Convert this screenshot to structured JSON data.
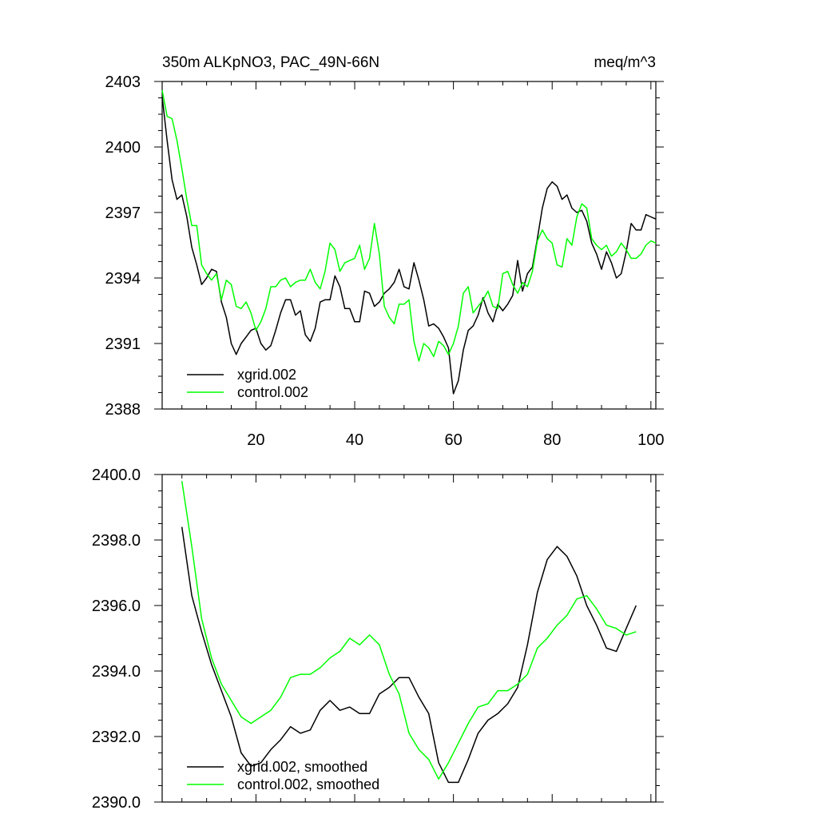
{
  "chart_data": [
    {
      "type": "line",
      "title_left": "350m ALKpNO3, PAC_49N-66N",
      "title_right": "meq/m^3",
      "xlim": [
        1,
        101
      ],
      "ylim": [
        2388,
        2403
      ],
      "xticks": [
        "20",
        "40",
        "60",
        "80",
        "100"
      ],
      "xtick_values": [
        20,
        40,
        60,
        80,
        100
      ],
      "yticks": [
        "2388",
        "2391",
        "2394",
        "2397",
        "2400",
        "2403"
      ],
      "ytick_values": [
        2388,
        2391,
        2394,
        2397,
        2400,
        2403
      ],
      "legend_position": "bottom-left",
      "series": [
        {
          "name": "xgrid.002",
          "color": "#000000",
          "x": [
            1,
            2,
            3,
            4,
            5,
            6,
            7,
            8,
            9,
            10,
            11,
            12,
            13,
            14,
            15,
            16,
            17,
            18,
            19,
            20,
            21,
            22,
            23,
            24,
            25,
            26,
            27,
            28,
            29,
            30,
            31,
            32,
            33,
            34,
            35,
            36,
            37,
            38,
            39,
            40,
            41,
            42,
            43,
            44,
            45,
            46,
            47,
            48,
            49,
            50,
            51,
            52,
            53,
            54,
            55,
            56,
            57,
            58,
            59,
            60,
            61,
            62,
            63,
            64,
            65,
            66,
            67,
            68,
            69,
            70,
            71,
            72,
            73,
            74,
            75,
            76,
            77,
            78,
            79,
            80,
            81,
            82,
            83,
            84,
            85,
            86,
            87,
            88,
            89,
            90,
            91,
            92,
            93,
            94,
            95,
            96,
            97,
            98,
            99,
            100,
            101
          ],
          "y": [
            2402.3,
            2400.3,
            2398.5,
            2397.6,
            2397.8,
            2396.8,
            2395.4,
            2394.6,
            2393.7,
            2394.0,
            2394.4,
            2394.3,
            2392.9,
            2392.2,
            2391.0,
            2390.5,
            2391.0,
            2391.3,
            2391.6,
            2391.7,
            2391.0,
            2390.7,
            2390.9,
            2391.6,
            2392.4,
            2393.0,
            2393.0,
            2392.3,
            2392.5,
            2391.4,
            2391.1,
            2391.7,
            2392.9,
            2393.0,
            2393.0,
            2394.1,
            2393.6,
            2392.6,
            2392.6,
            2392.0,
            2392.0,
            2393.4,
            2393.3,
            2392.7,
            2392.9,
            2393.3,
            2393.5,
            2393.8,
            2394.4,
            2393.6,
            2393.5,
            2394.7,
            2393.9,
            2393.0,
            2391.8,
            2391.9,
            2391.7,
            2391.3,
            2390.8,
            2388.7,
            2389.3,
            2390.7,
            2391.6,
            2391.8,
            2392.3,
            2393.1,
            2392.4,
            2392.0,
            2392.8,
            2392.5,
            2392.8,
            2393.2,
            2394.8,
            2393.4,
            2394.2,
            2394.5,
            2395.8,
            2397.2,
            2398.1,
            2398.4,
            2398.2,
            2397.6,
            2397.8,
            2397.2,
            2397.0,
            2397.1,
            2396.6,
            2395.6,
            2395.1,
            2394.4,
            2395.2,
            2394.7,
            2394.0,
            2394.2,
            2395.2,
            2396.5,
            2396.2,
            2396.2,
            2396.9,
            2396.8,
            2396.7
          ]
        },
        {
          "name": "control.002",
          "color": "#00ff00",
          "x": [
            1,
            2,
            3,
            4,
            5,
            6,
            7,
            8,
            9,
            10,
            11,
            12,
            13,
            14,
            15,
            16,
            17,
            18,
            19,
            20,
            21,
            22,
            23,
            24,
            25,
            26,
            27,
            28,
            29,
            30,
            31,
            32,
            33,
            34,
            35,
            36,
            37,
            38,
            39,
            40,
            41,
            42,
            43,
            44,
            45,
            46,
            47,
            48,
            49,
            50,
            51,
            52,
            53,
            54,
            55,
            56,
            57,
            58,
            59,
            60,
            61,
            62,
            63,
            64,
            65,
            66,
            67,
            68,
            69,
            70,
            71,
            72,
            73,
            74,
            75,
            76,
            77,
            78,
            79,
            80,
            81,
            82,
            83,
            84,
            85,
            86,
            87,
            88,
            89,
            90,
            91,
            92,
            93,
            94,
            95,
            96,
            97,
            98,
            99,
            100,
            101
          ],
          "y": [
            2402.6,
            2401.4,
            2401.3,
            2400.3,
            2399.0,
            2397.6,
            2396.4,
            2396.4,
            2394.6,
            2394.2,
            2393.9,
            2394.2,
            2393.0,
            2393.9,
            2393.7,
            2392.7,
            2392.6,
            2392.9,
            2392.4,
            2391.6,
            2392.0,
            2392.6,
            2393.6,
            2393.6,
            2393.9,
            2394.0,
            2393.6,
            2393.8,
            2393.9,
            2393.9,
            2394.4,
            2393.8,
            2393.5,
            2394.3,
            2395.6,
            2395.3,
            2394.3,
            2394.7,
            2394.8,
            2394.9,
            2395.5,
            2394.4,
            2394.9,
            2396.5,
            2395.1,
            2392.7,
            2392.2,
            2391.9,
            2392.8,
            2392.8,
            2393.0,
            2391.1,
            2390.2,
            2391.0,
            2390.8,
            2390.4,
            2391.1,
            2390.9,
            2390.5,
            2391.0,
            2391.8,
            2393.3,
            2393.6,
            2392.4,
            2392.7,
            2393.0,
            2393.4,
            2392.7,
            2392.6,
            2394.2,
            2394.3,
            2393.7,
            2393.3,
            2393.8,
            2393.6,
            2394.3,
            2395.7,
            2396.2,
            2395.8,
            2395.6,
            2394.6,
            2394.5,
            2395.8,
            2395.5,
            2396.8,
            2397.4,
            2397.2,
            2395.8,
            2395.5,
            2395.3,
            2395.5,
            2395.0,
            2395.2,
            2395.6,
            2395.3,
            2394.9,
            2394.9,
            2395.1,
            2395.5,
            2395.7,
            2395.6
          ]
        }
      ]
    },
    {
      "type": "line",
      "xlim": [
        1,
        101
      ],
      "ylim": [
        2390.0,
        2400.0
      ],
      "yticks": [
        "2390.0",
        "2392.0",
        "2394.0",
        "2396.0",
        "2398.0",
        "2400.0"
      ],
      "ytick_values": [
        2390,
        2392,
        2394,
        2396,
        2398,
        2400
      ],
      "xtick_values": [
        20,
        40,
        60,
        80,
        100
      ],
      "legend_position": "bottom-left",
      "series": [
        {
          "name": "xgrid.002, smoothed",
          "color": "#000000",
          "x": [
            5,
            7,
            9,
            11,
            13,
            15,
            17,
            19,
            21,
            23,
            25,
            27,
            29,
            31,
            33,
            35,
            37,
            39,
            41,
            43,
            45,
            47,
            49,
            51,
            53,
            55,
            57,
            59,
            61,
            63,
            65,
            67,
            69,
            71,
            73,
            75,
            77,
            79,
            81,
            83,
            85,
            87,
            89,
            91,
            93,
            95,
            97
          ],
          "y": [
            2398.4,
            2396.3,
            2395.2,
            2394.2,
            2393.4,
            2392.6,
            2391.5,
            2391.1,
            2391.2,
            2391.6,
            2391.9,
            2392.3,
            2392.1,
            2392.2,
            2392.8,
            2393.1,
            2392.8,
            2392.9,
            2392.7,
            2392.7,
            2393.3,
            2393.5,
            2393.8,
            2393.8,
            2393.2,
            2392.7,
            2391.2,
            2390.6,
            2390.6,
            2391.3,
            2392.1,
            2392.5,
            2392.7,
            2393.0,
            2393.5,
            2394.8,
            2396.4,
            2397.4,
            2397.8,
            2397.5,
            2396.9,
            2396.0,
            2395.4,
            2394.7,
            2394.6,
            2395.3,
            2396.0
          ]
        },
        {
          "name": "control.002, smoothed",
          "color": "#00ff00",
          "x": [
            5,
            7,
            9,
            11,
            13,
            15,
            17,
            19,
            21,
            23,
            25,
            27,
            29,
            31,
            33,
            35,
            37,
            39,
            41,
            43,
            45,
            47,
            49,
            51,
            53,
            55,
            57,
            59,
            61,
            63,
            65,
            67,
            69,
            71,
            73,
            75,
            77,
            79,
            81,
            83,
            85,
            87,
            89,
            91,
            93,
            95,
            97
          ],
          "y": [
            2399.8,
            2397.8,
            2395.6,
            2394.4,
            2393.6,
            2393.1,
            2392.6,
            2392.4,
            2392.6,
            2392.8,
            2393.2,
            2393.8,
            2393.9,
            2393.9,
            2394.1,
            2394.4,
            2394.6,
            2395.0,
            2394.8,
            2395.1,
            2394.8,
            2393.9,
            2393.3,
            2392.1,
            2391.6,
            2391.3,
            2390.7,
            2391.2,
            2391.8,
            2392.4,
            2392.9,
            2393.0,
            2393.4,
            2393.4,
            2393.6,
            2393.9,
            2394.7,
            2395.0,
            2395.4,
            2395.7,
            2396.2,
            2396.3,
            2395.9,
            2395.4,
            2395.3,
            2395.1,
            2395.2
          ]
        }
      ]
    }
  ]
}
